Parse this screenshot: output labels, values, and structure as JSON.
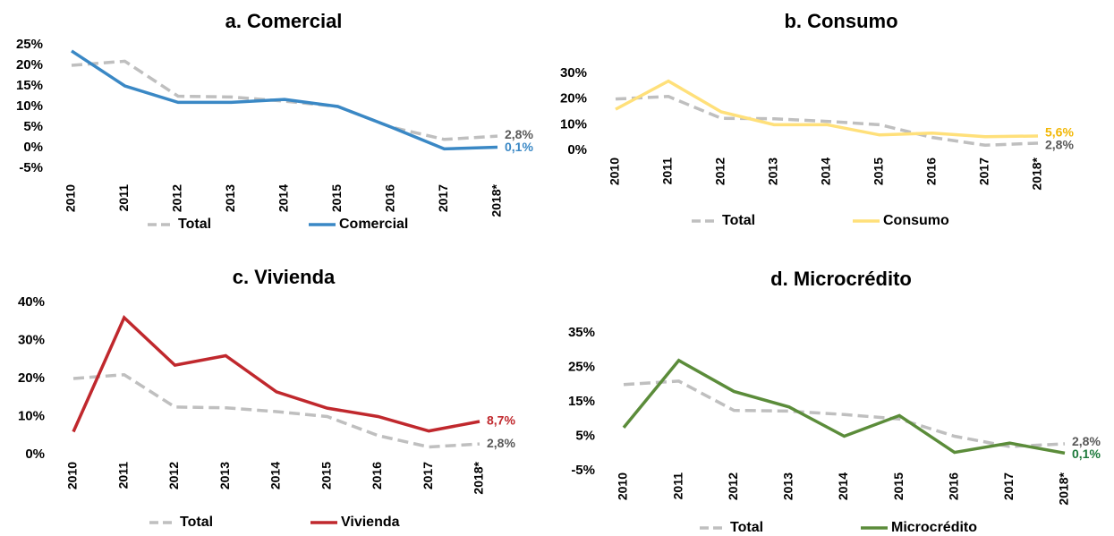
{
  "chart_data": [
    {
      "type": "line",
      "title": "a. Comercial",
      "categories": [
        "2010",
        "2011",
        "2012",
        "2013",
        "2014",
        "2015",
        "2016",
        "2017",
        "2018*"
      ],
      "ylim": [
        -5,
        25
      ],
      "yticks": [
        {
          "value": -5,
          "label": "-5%"
        },
        {
          "value": 0,
          "label": "0%"
        },
        {
          "value": 5,
          "label": "5%"
        },
        {
          "value": 10,
          "label": "10%"
        },
        {
          "value": 15,
          "label": "15%"
        },
        {
          "value": 20,
          "label": "20%"
        },
        {
          "value": 25,
          "label": "25%"
        }
      ],
      "series": [
        {
          "name": "Total",
          "color": "#bfbfbf",
          "dashed": true,
          "label_color": "#595959",
          "values": [
            20,
            21,
            12.5,
            12.3,
            11.3,
            10,
            5,
            2,
            2.8
          ],
          "value_labels": [
            null,
            null,
            null,
            null,
            null,
            null,
            null,
            null,
            "2,8%"
          ]
        },
        {
          "name": "Comercial",
          "color": "#3a88c5",
          "values": [
            23.5,
            15,
            11,
            11,
            11.7,
            10,
            5,
            -0.3,
            0.1
          ],
          "value_labels": [
            null,
            null,
            null,
            null,
            null,
            null,
            null,
            null,
            "0,1%"
          ]
        }
      ]
    },
    {
      "type": "line",
      "title": "b. Consumo",
      "categories": [
        "2010",
        "2011",
        "2012",
        "2013",
        "2014",
        "2015",
        "2016",
        "2017",
        "2018*"
      ],
      "ylim": [
        0,
        30
      ],
      "yticks": [
        {
          "value": 0,
          "label": "0%"
        },
        {
          "value": 10,
          "label": "10%"
        },
        {
          "value": 20,
          "label": "20%"
        },
        {
          "value": 30,
          "label": "30%"
        }
      ],
      "series": [
        {
          "name": "Total",
          "color": "#bfbfbf",
          "dashed": true,
          "label_color": "#595959",
          "values": [
            20,
            21,
            12.5,
            12.3,
            11.3,
            10,
            5,
            2,
            2.8
          ],
          "value_labels": [
            null,
            null,
            null,
            null,
            null,
            null,
            null,
            null,
            "2,8%"
          ]
        },
        {
          "name": "Consumo",
          "color": "#ffe07a",
          "label_color": "#f2b705",
          "values": [
            16,
            27,
            15,
            10,
            10,
            6,
            6.7,
            5.3,
            5.6
          ],
          "value_labels": [
            null,
            null,
            null,
            null,
            null,
            null,
            null,
            null,
            "5,6%"
          ]
        }
      ]
    },
    {
      "type": "line",
      "title": "c. Vivienda",
      "categories": [
        "2010",
        "2011",
        "2012",
        "2013",
        "2014",
        "2015",
        "2016",
        "2017",
        "2018*"
      ],
      "ylim": [
        0,
        40
      ],
      "yticks": [
        {
          "value": 0,
          "label": "0%"
        },
        {
          "value": 10,
          "label": "10%"
        },
        {
          "value": 20,
          "label": "20%"
        },
        {
          "value": 30,
          "label": "30%"
        },
        {
          "value": 40,
          "label": "40%"
        }
      ],
      "series": [
        {
          "name": "Total",
          "color": "#bfbfbf",
          "dashed": true,
          "label_color": "#595959",
          "values": [
            20,
            21,
            12.5,
            12.3,
            11.3,
            10,
            5,
            2,
            2.8
          ],
          "value_labels": [
            null,
            null,
            null,
            null,
            null,
            null,
            null,
            null,
            "2,8%"
          ]
        },
        {
          "name": "Vivienda",
          "color": "#c0282d",
          "values": [
            6,
            36,
            23.5,
            26,
            16.5,
            12.2,
            10,
            6.2,
            8.7
          ],
          "value_labels": [
            null,
            null,
            null,
            null,
            null,
            null,
            null,
            null,
            "8,7%"
          ]
        }
      ]
    },
    {
      "type": "line",
      "title": "d. Microcrédito",
      "categories": [
        "2010",
        "2011",
        "2012",
        "2013",
        "2014",
        "2015",
        "2016",
        "2017",
        "2018*"
      ],
      "ylim": [
        -5,
        35
      ],
      "yticks": [
        {
          "value": -5,
          "label": "-5%"
        },
        {
          "value": 5,
          "label": "5%"
        },
        {
          "value": 15,
          "label": "15%"
        },
        {
          "value": 25,
          "label": "25%"
        },
        {
          "value": 35,
          "label": "35%"
        }
      ],
      "series": [
        {
          "name": "Total",
          "color": "#bfbfbf",
          "dashed": true,
          "label_color": "#595959",
          "values": [
            20,
            21,
            12.5,
            12.3,
            11.3,
            10,
            5,
            2,
            2.8
          ],
          "value_labels": [
            null,
            null,
            null,
            null,
            null,
            null,
            null,
            null,
            "2,8%"
          ]
        },
        {
          "name": "Microcrédito",
          "color": "#5b8c3a",
          "label_color": "#1e7a3c",
          "values": [
            7.5,
            27,
            18,
            13.5,
            5,
            11,
            0.3,
            3,
            0.1
          ],
          "value_labels": [
            null,
            null,
            null,
            null,
            null,
            null,
            null,
            null,
            "0,1%"
          ]
        }
      ]
    }
  ]
}
